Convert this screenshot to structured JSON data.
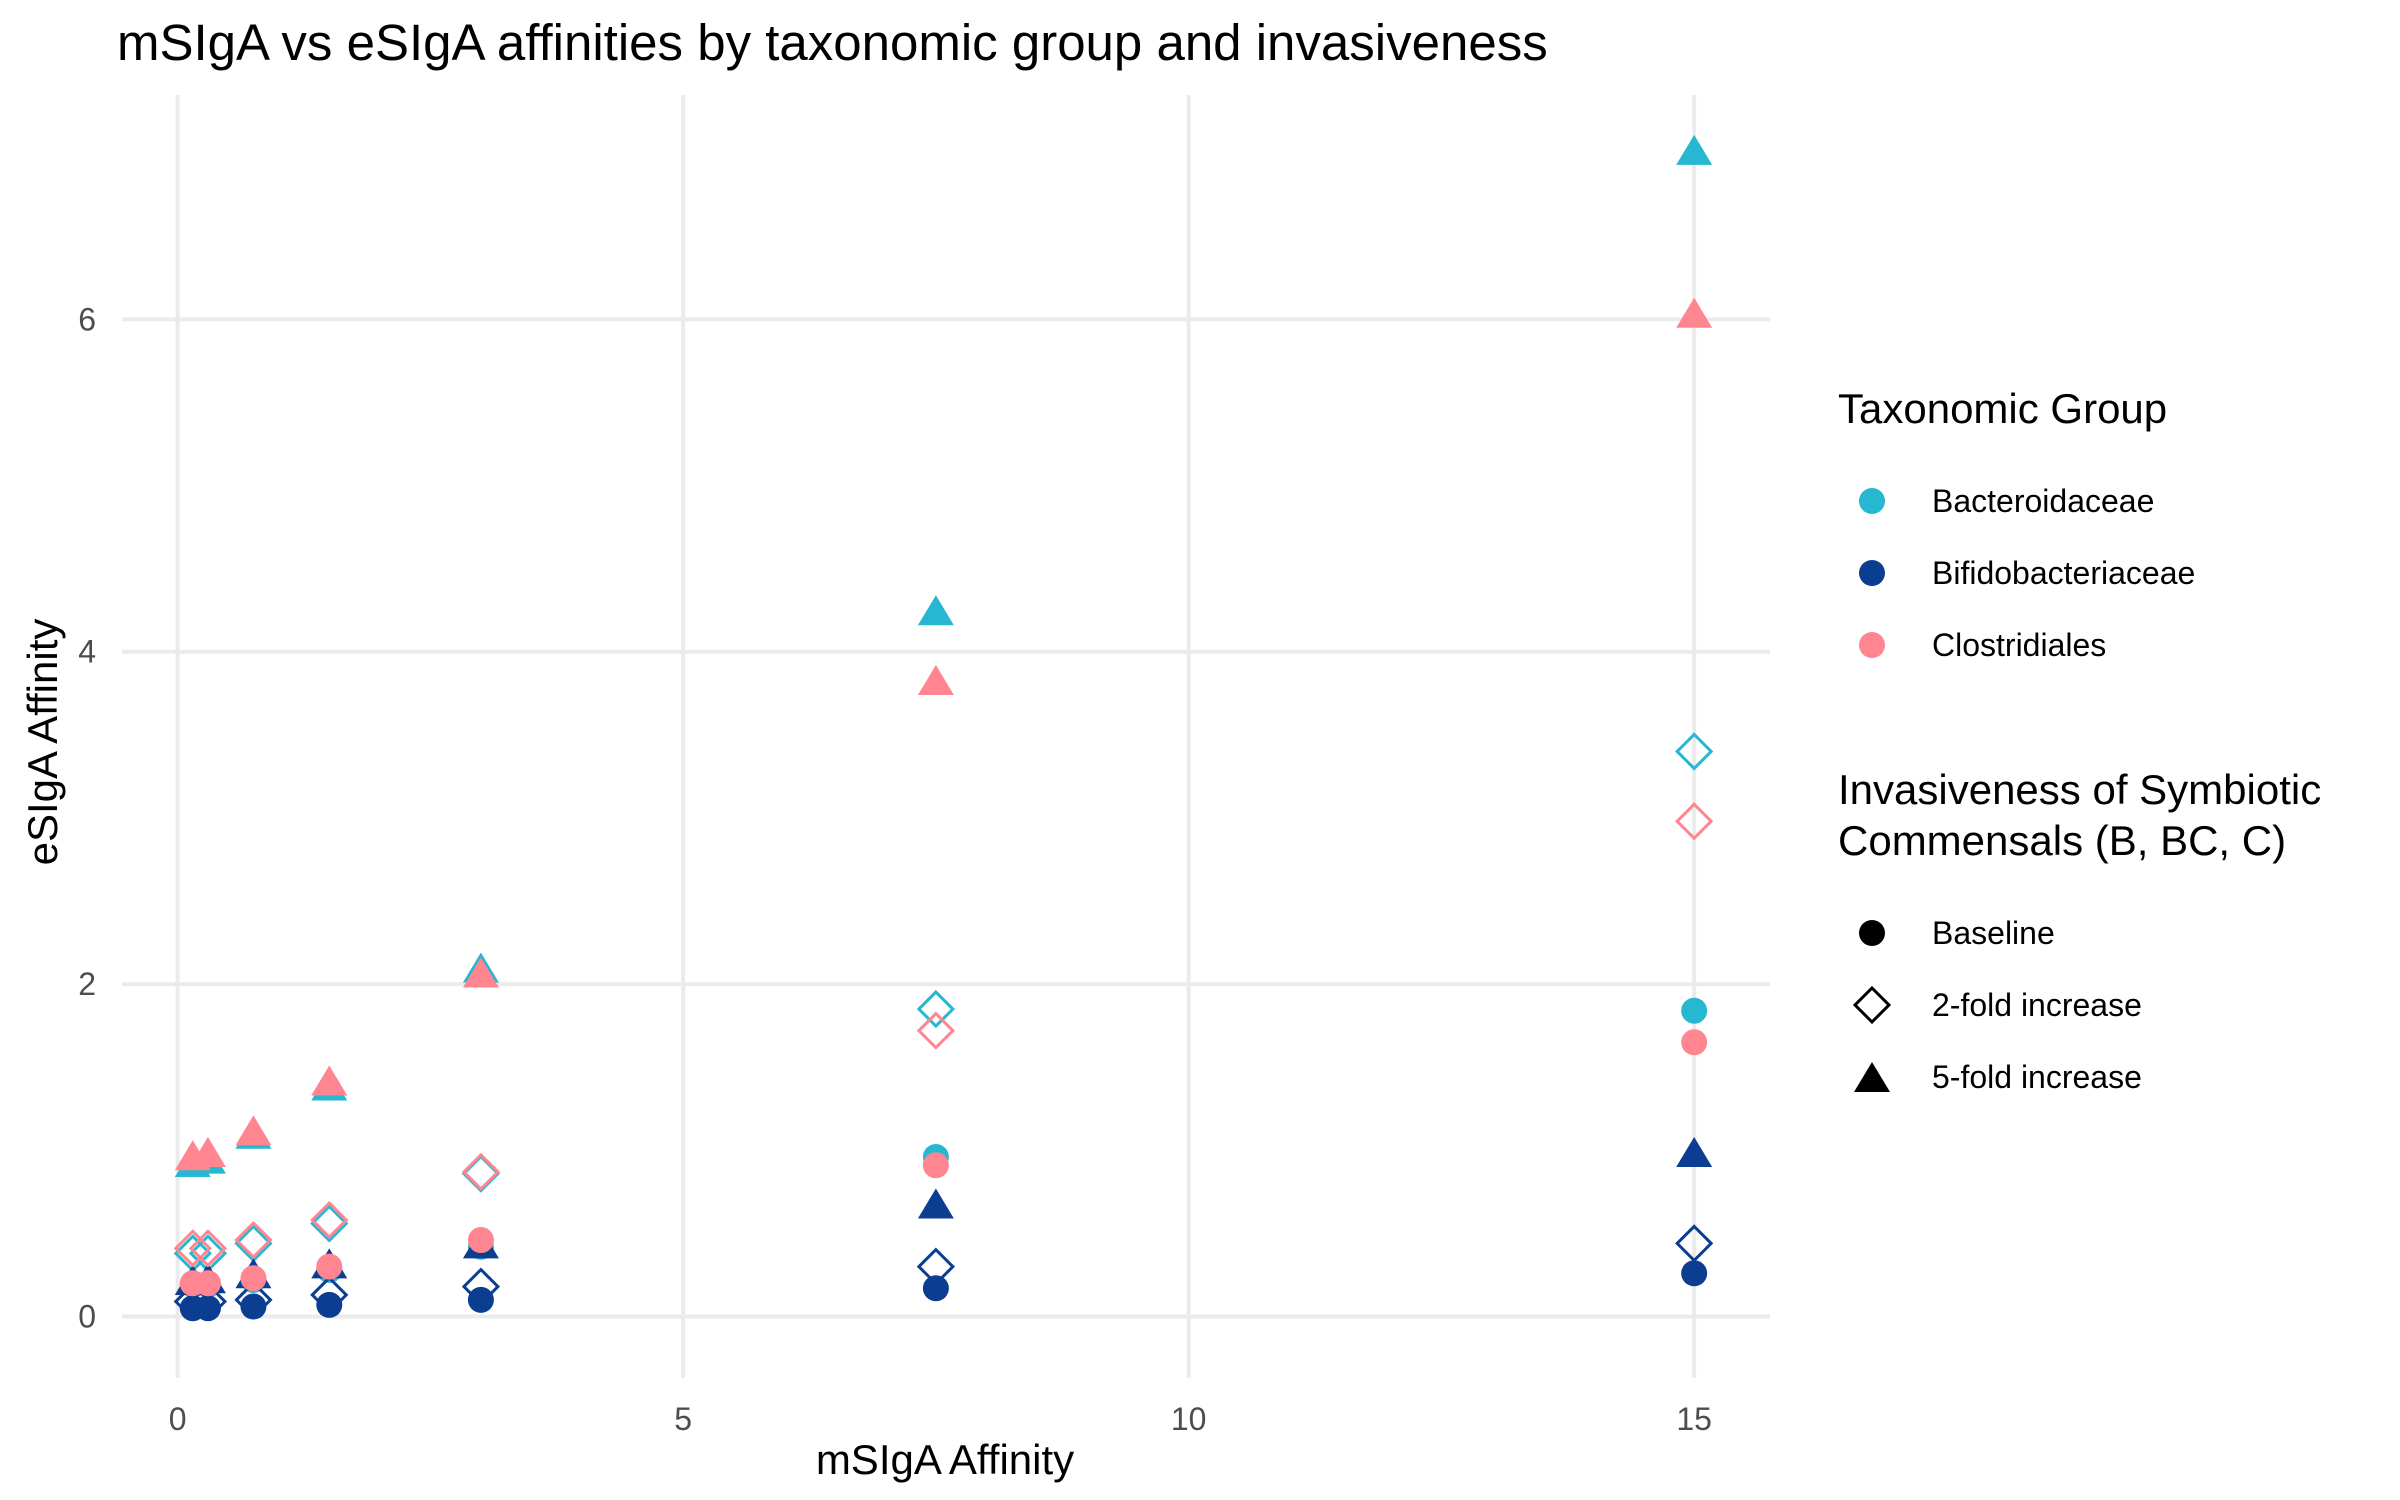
{
  "chart_data": {
    "type": "scatter",
    "title": "mSIgA vs eSIgA affinities by taxonomic group and invasiveness",
    "xlabel": "mSIgA Affinity",
    "ylabel": "eSIgA Affinity",
    "xlim": [
      -0.55,
      15.75
    ],
    "ylim": [
      -0.37,
      7.35
    ],
    "xticks": [
      0,
      5,
      10,
      15
    ],
    "yticks": [
      0,
      2,
      4,
      6
    ],
    "grid": true,
    "legend_position": "right",
    "colors": {
      "Bacteroidaceae": "#26B8D1",
      "Bifidobacteriaceae": "#0B3D91",
      "Clostridiales": "#FF8590"
    },
    "legends": [
      {
        "title": "Taxonomic Group",
        "entries": [
          {
            "label": "Bacteroidaceae",
            "shape": "circle",
            "color": "#26B8D1"
          },
          {
            "label": "Bifidobacteriaceae",
            "shape": "circle",
            "color": "#0B3D91"
          },
          {
            "label": "Clostridiales",
            "shape": "circle",
            "color": "#FF8590"
          }
        ]
      },
      {
        "title": "Invasiveness of Symbiotic\nCommensals (B, BC, C)",
        "entries": [
          {
            "label": "Baseline",
            "shape": "circle",
            "color": "#000000"
          },
          {
            "label": "2-fold increase",
            "shape": "diamond",
            "color": "#000000"
          },
          {
            "label": "5-fold increase",
            "shape": "triangle",
            "color": "#000000"
          }
        ]
      }
    ],
    "series": [
      {
        "group": "Bacteroidaceae",
        "invasiveness": "Baseline",
        "points": [
          [
            0.15,
            0.19
          ],
          [
            0.3,
            0.19
          ],
          [
            0.75,
            0.22
          ],
          [
            1.5,
            0.28
          ],
          [
            3,
            0.42
          ],
          [
            7.5,
            0.96
          ],
          [
            15,
            1.84
          ]
        ]
      },
      {
        "group": "Bacteroidaceae",
        "invasiveness": "2-fold increase",
        "points": [
          [
            0.15,
            0.38
          ],
          [
            0.3,
            0.38
          ],
          [
            0.75,
            0.44
          ],
          [
            1.5,
            0.56
          ],
          [
            3,
            0.86
          ],
          [
            7.5,
            1.85
          ],
          [
            15,
            3.4
          ]
        ]
      },
      {
        "group": "Bacteroidaceae",
        "invasiveness": "5-fold increase",
        "points": [
          [
            0.15,
            0.93
          ],
          [
            0.3,
            0.95
          ],
          [
            0.75,
            1.1
          ],
          [
            1.5,
            1.39
          ],
          [
            3,
            2.1
          ],
          [
            7.5,
            4.25
          ],
          [
            15,
            7.02
          ]
        ]
      },
      {
        "group": "Bifidobacteriaceae",
        "invasiveness": "Baseline",
        "points": [
          [
            0.15,
            0.05
          ],
          [
            0.3,
            0.05
          ],
          [
            0.75,
            0.06
          ],
          [
            1.5,
            0.07
          ],
          [
            3,
            0.1
          ],
          [
            7.5,
            0.17
          ],
          [
            15,
            0.26
          ]
        ]
      },
      {
        "group": "Bifidobacteriaceae",
        "invasiveness": "2-fold increase",
        "points": [
          [
            0.15,
            0.09
          ],
          [
            0.3,
            0.09
          ],
          [
            0.75,
            0.1
          ],
          [
            1.5,
            0.13
          ],
          [
            3,
            0.18
          ],
          [
            7.5,
            0.3
          ],
          [
            15,
            0.44
          ]
        ]
      },
      {
        "group": "Bifidobacteriaceae",
        "invasiveness": "5-fold increase",
        "points": [
          [
            0.15,
            0.22
          ],
          [
            0.3,
            0.23
          ],
          [
            0.75,
            0.26
          ],
          [
            1.5,
            0.32
          ],
          [
            3,
            0.44
          ],
          [
            7.5,
            0.68
          ],
          [
            15,
            0.99
          ]
        ]
      },
      {
        "group": "Clostridiales",
        "invasiveness": "Baseline",
        "points": [
          [
            0.15,
            0.2
          ],
          [
            0.3,
            0.2
          ],
          [
            0.75,
            0.23
          ],
          [
            1.5,
            0.3
          ],
          [
            3,
            0.46
          ],
          [
            7.5,
            0.91
          ],
          [
            15,
            1.65
          ]
        ]
      },
      {
        "group": "Clostridiales",
        "invasiveness": "2-fold increase",
        "points": [
          [
            0.15,
            0.41
          ],
          [
            0.3,
            0.41
          ],
          [
            0.75,
            0.46
          ],
          [
            1.5,
            0.58
          ],
          [
            3,
            0.87
          ],
          [
            7.5,
            1.72
          ],
          [
            15,
            2.98
          ]
        ]
      },
      {
        "group": "Clostridiales",
        "invasiveness": "5-fold increase",
        "points": [
          [
            0.15,
            0.97
          ],
          [
            0.3,
            0.99
          ],
          [
            0.75,
            1.12
          ],
          [
            1.5,
            1.42
          ],
          [
            3,
            2.07
          ],
          [
            7.5,
            3.83
          ],
          [
            15,
            6.04
          ]
        ]
      }
    ]
  }
}
